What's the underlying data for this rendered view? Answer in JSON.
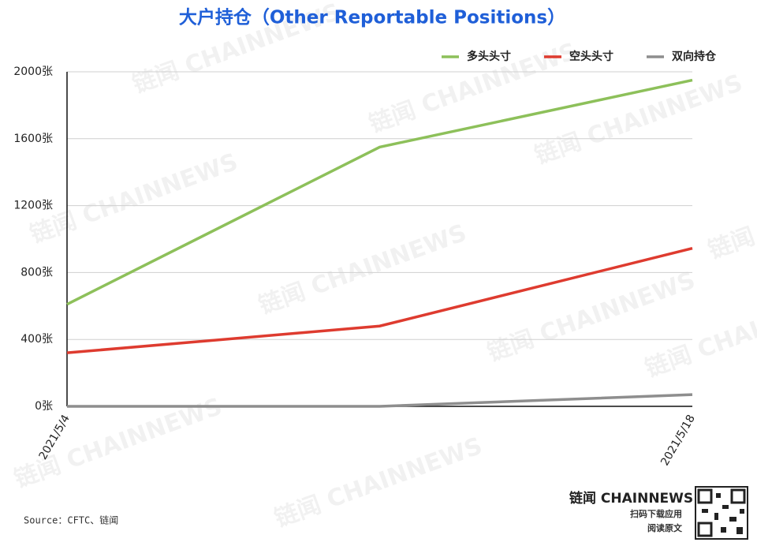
{
  "chart_data": {
    "type": "line",
    "title": "大户持仓（Other Reportable Positions）",
    "categories": [
      "2021/5/4",
      null,
      "2021/5/18"
    ],
    "series": [
      {
        "name": "多头头寸",
        "color": "#8dc05a",
        "values": [
          610,
          1550,
          1950
        ]
      },
      {
        "name": "空头头寸",
        "color": "#de3b2f",
        "values": [
          320,
          480,
          945
        ]
      },
      {
        "name": "双向持仓",
        "color": "#8e8e8e",
        "values": [
          0,
          0,
          70
        ]
      }
    ],
    "ylim": [
      0,
      2000
    ],
    "yticks": [
      {
        "value": 0,
        "label": "0张"
      },
      {
        "value": 400,
        "label": "400张"
      },
      {
        "value": 800,
        "label": "800张"
      },
      {
        "value": 1200,
        "label": "1200张"
      },
      {
        "value": 1600,
        "label": "1600张"
      },
      {
        "value": 2000,
        "label": "2000张"
      }
    ],
    "grid": true,
    "legend": "top-right"
  },
  "footer": {
    "source": "Source：CFTC、链闻",
    "brand": "链闻 CHAINNEWS",
    "download": "扫码下载应用",
    "read": "阅读原文"
  },
  "watermark": "链闻 CHAINNEWS"
}
